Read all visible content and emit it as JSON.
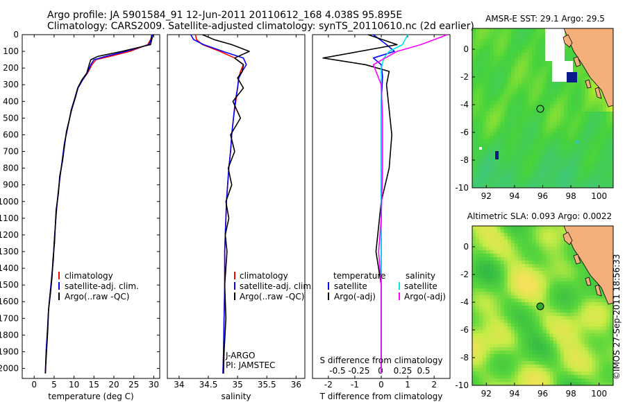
{
  "header": {
    "line1": "Argo profile: JA 5901584_91 12-Jun-2011 20110612_168 4.038S 95.895E",
    "line2": "Climatology: CARS2009. Satellite-adjusted climatology: synTS_20110610.nc (2d earlier)"
  },
  "depth_axis": {
    "ticks": [
      "0",
      "100",
      "200",
      "300",
      "400",
      "500",
      "600",
      "700",
      "800",
      "900",
      "1000",
      "1100",
      "1200",
      "1300",
      "1400",
      "1500",
      "1600",
      "1700",
      "1800",
      "1900",
      "2000"
    ],
    "range": [
      0,
      2060
    ]
  },
  "temperature_panel": {
    "xlabel": "temperature (deg C)",
    "xticks": [
      "0",
      "5",
      "10",
      "15",
      "20",
      "25",
      "30"
    ],
    "xlim": [
      -3,
      31.5
    ],
    "legend": [
      {
        "label": "climatology",
        "color": "#ff0000"
      },
      {
        "label": "satellite-adj. clim.",
        "color": "#0000ff"
      },
      {
        "label": "Argo(..raw -QC)",
        "color": "#000000"
      }
    ]
  },
  "salinity_panel": {
    "xlabel": "salinity",
    "xticks": [
      "34",
      "34.5",
      "35",
      "35.5",
      "36"
    ],
    "xlim": [
      33.8,
      36.15
    ],
    "legend": [
      {
        "label": "climatology",
        "color": "#ff0000"
      },
      {
        "label": "satellite-adj. clim.",
        "color": "#0000ff"
      },
      {
        "label": "Argo(..raw -QC)",
        "color": "#000000"
      }
    ],
    "note1": "J-ARGO",
    "note2": "PI: JAMSTEC"
  },
  "difference_panel": {
    "xlabel": "T difference from climatology",
    "xticks": [
      "-2",
      "-1",
      "0",
      "1",
      "2"
    ],
    "xlim": [
      -2.6,
      2.6
    ],
    "s_label": "S difference from climatology",
    "s_ticks": [
      "-0.5",
      "-0.25",
      "0",
      "0.25",
      "0.5"
    ],
    "legend_titles": [
      "temperature",
      "salinity"
    ],
    "legend": [
      {
        "label": "satellite",
        "color": "#0000ff"
      },
      {
        "label": "Argo(-adj)",
        "color": "#000000"
      },
      {
        "label": "satellite",
        "color": "#00e5e5"
      },
      {
        "label": "Argo(-adj)",
        "color": "#ff00ff"
      }
    ]
  },
  "sst_map": {
    "title": "AMSR-E SST: 29.1 Argo: 29.5",
    "xticks": [
      "92",
      "94",
      "96",
      "98",
      "100"
    ],
    "yticks": [
      "0",
      "-2",
      "-4",
      "-6",
      "-8",
      "-10"
    ],
    "lon": [
      91,
      101
    ],
    "lat": [
      -10,
      1.5
    ],
    "marker": {
      "lon": 95.9,
      "lat": -4.04
    }
  },
  "sla_map": {
    "title": "Altimetric SLA: 0.093 Argo: 0.0022",
    "xticks": [
      "92",
      "94",
      "96",
      "98",
      "100"
    ],
    "yticks": [
      "0",
      "-2",
      "-4",
      "-6",
      "-8",
      "-10"
    ],
    "lon": [
      91,
      101
    ],
    "lat": [
      -10,
      1.5
    ],
    "marker": {
      "lon": 95.9,
      "lat": -4.04
    }
  },
  "footer": {
    "credit": "©IMOS 27-Sep-2011 18:56:33"
  },
  "chart_data": [
    {
      "type": "line",
      "xlabel": "temperature (deg C)",
      "ylabel": "",
      "y_is_depth": true,
      "series": [
        {
          "name": "climatology",
          "color": "#ff0000",
          "x": [
            29.6,
            29.2,
            28.5,
            24,
            19,
            15.5,
            14.5,
            13.4,
            12.2,
            11.0,
            10.3,
            9.4,
            8.9,
            8.2,
            7.6,
            7.0,
            6.5,
            6.0,
            5.6,
            5.3,
            5.0,
            4.8,
            4.4,
            4.0,
            3.6,
            3.3,
            3.0,
            2.8
          ],
          "y": [
            0,
            30,
            60,
            100,
            130,
            150,
            180,
            230,
            270,
            320,
            380,
            450,
            500,
            580,
            650,
            760,
            850,
            950,
            1050,
            1150,
            1250,
            1350,
            1450,
            1550,
            1650,
            1780,
            1900,
            2030
          ]
        },
        {
          "name": "satellite-adj. clim.",
          "color": "#0000ff",
          "x": [
            29.5,
            29.3,
            28.8,
            23,
            18,
            15.0,
            14.2,
            13.3,
            12.2,
            11.0,
            10.3,
            9.4,
            8.9,
            8.2,
            7.6,
            7.0,
            6.5,
            6.0,
            5.6,
            5.3,
            5.0,
            4.8,
            4.4,
            4.0,
            3.6,
            3.3,
            3.0,
            2.8
          ],
          "y": [
            0,
            30,
            60,
            100,
            130,
            150,
            180,
            230,
            270,
            320,
            380,
            450,
            500,
            580,
            650,
            760,
            850,
            950,
            1050,
            1150,
            1250,
            1350,
            1450,
            1550,
            1650,
            1780,
            1900,
            2030
          ]
        },
        {
          "name": "Argo(..raw -QC)",
          "color": "#000000",
          "x": [
            29.8,
            29.5,
            29.2,
            22,
            16,
            14.2,
            13.8,
            13.2,
            12.0,
            10.9,
            10.2,
            9.3,
            8.9,
            8.1,
            7.7,
            7.1,
            6.4,
            6.1,
            5.5,
            5.3,
            5.1,
            4.7,
            4.5,
            4.1,
            3.6,
            3.4,
            3.1,
            2.8
          ],
          "y": [
            0,
            30,
            60,
            100,
            130,
            150,
            180,
            230,
            270,
            320,
            380,
            450,
            500,
            580,
            650,
            760,
            850,
            950,
            1050,
            1150,
            1250,
            1350,
            1450,
            1550,
            1650,
            1780,
            1900,
            2030
          ]
        }
      ]
    },
    {
      "type": "line",
      "xlabel": "salinity",
      "ylabel": "",
      "y_is_depth": true,
      "series": [
        {
          "name": "climatology",
          "color": "#ff0000",
          "x": [
            34.28,
            34.3,
            34.4,
            34.7,
            34.95,
            35.1,
            35.05,
            35.02,
            35.0,
            34.97,
            34.93,
            34.9,
            34.88,
            34.85,
            34.83,
            34.81,
            34.8,
            34.79,
            34.78,
            34.78,
            34.77,
            34.76,
            34.75
          ],
          "y": [
            0,
            30,
            60,
            100,
            140,
            180,
            220,
            260,
            320,
            400,
            500,
            600,
            700,
            800,
            900,
            1000,
            1100,
            1200,
            1300,
            1500,
            1700,
            1900,
            2030
          ]
        },
        {
          "name": "satellite-adj. clim.",
          "color": "#0000ff",
          "x": [
            34.2,
            34.25,
            34.42,
            34.75,
            35.1,
            35.15,
            35.08,
            35.02,
            35.0,
            34.96,
            34.93,
            34.9,
            34.88,
            34.85,
            34.83,
            34.81,
            34.8,
            34.79,
            34.78,
            34.78,
            34.77,
            34.76,
            34.75
          ],
          "y": [
            0,
            30,
            60,
            100,
            140,
            180,
            220,
            260,
            320,
            400,
            500,
            600,
            700,
            800,
            900,
            1000,
            1100,
            1200,
            1300,
            1500,
            1700,
            1900,
            2030
          ]
        },
        {
          "name": "Argo(..raw -QC)",
          "color": "#000000",
          "x": [
            34.4,
            34.6,
            34.9,
            35.2,
            34.95,
            35.1,
            35.08,
            35.0,
            35.1,
            34.92,
            35.05,
            34.88,
            34.95,
            34.84,
            34.9,
            34.8,
            34.85,
            34.79,
            34.82,
            34.78,
            34.8,
            34.77,
            34.76
          ],
          "y": [
            0,
            30,
            60,
            100,
            140,
            180,
            220,
            260,
            320,
            400,
            500,
            600,
            700,
            800,
            900,
            1000,
            1100,
            1200,
            1300,
            1500,
            1700,
            1900,
            2030
          ]
        }
      ]
    },
    {
      "type": "line",
      "xlabel": "T difference from climatology",
      "ylabel": "",
      "y_is_depth": true,
      "series": [
        {
          "name": "satellite",
          "color": "#0000ff",
          "x": [
            -0.3,
            0.2,
            0.5,
            -0.3,
            0.0,
            0.05,
            0.0,
            0.0,
            0.0,
            0.0,
            0.0,
            0.0,
            0.0
          ],
          "y": [
            0,
            60,
            100,
            140,
            180,
            250,
            400,
            600,
            800,
            1000,
            1400,
            1800,
            2030
          ]
        },
        {
          "name": "Argo(-adj)",
          "color": "#000000",
          "x": [
            -0.5,
            0.6,
            -2.2,
            -0.6,
            0.3,
            0.2,
            0.3,
            0.4,
            0.3,
            0.0,
            -0.2,
            0.0,
            0.0
          ],
          "y": [
            0,
            60,
            140,
            180,
            220,
            300,
            450,
            600,
            800,
            1000,
            1300,
            1500,
            2030
          ]
        },
        {
          "name": "satellite",
          "color": "#00e5e5",
          "x": [
            1.0,
            0.8,
            0.3,
            0.1,
            0.0,
            0.0,
            0.0,
            0.0,
            0.0,
            0.0,
            0.0
          ],
          "y": [
            0,
            60,
            100,
            140,
            200,
            400,
            700,
            1000,
            1400,
            1800,
            2030
          ]
        },
        {
          "name": "Argo(-adj)",
          "color": "#ff00ff",
          "x": [
            2.5,
            1.5,
            0.6,
            -0.3,
            0.0,
            0.05,
            0.05,
            0.0,
            -0.1,
            0.0,
            0.0
          ],
          "y": [
            0,
            60,
            100,
            180,
            300,
            500,
            800,
            1100,
            1300,
            1500,
            2030
          ]
        }
      ]
    }
  ]
}
